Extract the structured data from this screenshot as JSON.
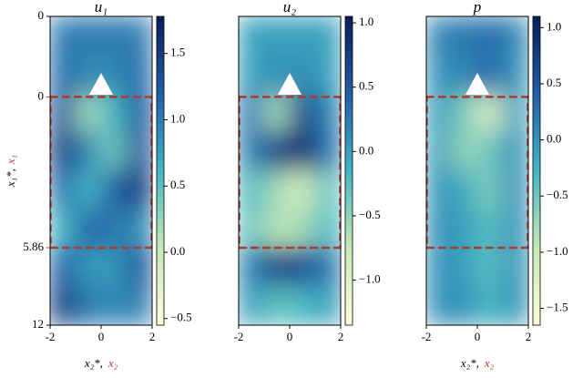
{
  "chart_data": [
    {
      "type": "heatmap",
      "title": "u₁",
      "xlabel": "x₂*,",
      "x2label": "x₂",
      "ylabel": "x₁*,",
      "y2label": "x₁",
      "accent": "#b03a2e",
      "xlim": [
        -2,
        2
      ],
      "xticks": [
        -2,
        0,
        2
      ],
      "ylim": [
        0,
        12
      ],
      "yticks": [
        0,
        12
      ],
      "y2lim": [
        -3.13,
        8.87
      ],
      "y2ticks": [
        0,
        5.86
      ],
      "clim": [
        -0.55,
        1.78
      ],
      "cticks": [
        {
          "value": -0.5,
          "label": "−0.5"
        },
        {
          "value": 0,
          "label": "0.0"
        },
        0.5,
        {
          "value": 1,
          "label": "1.0"
        },
        1.5
      ],
      "colormap": [
        "#ffffd9",
        "#c7e9b4",
        "#41b6c4",
        "#225ea8",
        "#081d58"
      ],
      "values": [
        [
          1.0,
          1.0,
          1.0,
          1.0
        ],
        [
          1.1,
          0.9,
          0.9,
          1.1
        ],
        [
          1.3,
          0.2,
          0.6,
          1.3
        ],
        [
          1.5,
          0.9,
          0.4,
          1.3
        ],
        [
          1.1,
          0.6,
          1.2,
          1.5
        ],
        [
          0.6,
          1.2,
          1.0,
          0.9
        ],
        [
          1.2,
          0.8,
          0.8,
          1.3
        ],
        [
          1.5,
          1.0,
          0.9,
          1.0
        ]
      ]
    },
    {
      "type": "heatmap",
      "title": "u₂",
      "accent": "#b03a2e",
      "xlim": [
        -2,
        2
      ],
      "xticks": [
        -2,
        0,
        2
      ],
      "ylim": [
        0,
        12
      ],
      "y2lim": [
        -3.13,
        8.87
      ],
      "y2ticks": [
        0,
        5.86
      ],
      "clim": [
        -1.35,
        1.05
      ],
      "cticks": [
        {
          "value": -1,
          "label": "−1.0"
        },
        {
          "value": -0.5,
          "label": "−0.5"
        },
        {
          "value": 0,
          "label": "0.0"
        },
        0.5,
        {
          "value": 1,
          "label": "1.0"
        }
      ],
      "colormap": [
        "#ffffd9",
        "#c7e9b4",
        "#41b6c4",
        "#225ea8",
        "#081d58"
      ],
      "values": [
        [
          0,
          0,
          0,
          0
        ],
        [
          0,
          0.1,
          0.1,
          0
        ],
        [
          0.3,
          -0.6,
          0.7,
          0.2
        ],
        [
          0.2,
          0.7,
          0.9,
          0.3
        ],
        [
          -0.2,
          -0.6,
          -0.9,
          -0.3
        ],
        [
          -0.3,
          -0.7,
          -0.6,
          -0.2
        ],
        [
          0.2,
          0.7,
          0.6,
          0.3
        ],
        [
          0,
          -0.3,
          -0.2,
          0
        ]
      ]
    },
    {
      "type": "heatmap",
      "title": "p",
      "xlabel": "x₂*,",
      "x2label": "x₂",
      "accent": "#b03a2e",
      "xlim": [
        -2,
        2
      ],
      "xticks": [
        -2,
        0,
        2
      ],
      "ylim": [
        0,
        12
      ],
      "y2lim": [
        -3.13,
        8.87
      ],
      "y2ticks": [
        0,
        5.86
      ],
      "clim": [
        -1.65,
        1.1
      ],
      "cticks": [
        {
          "value": -1.5,
          "label": "−1.5"
        },
        {
          "value": -1,
          "label": "−1.0"
        },
        {
          "value": -0.5,
          "label": "−0.5"
        },
        {
          "value": 0,
          "label": "0.0"
        },
        0.5,
        {
          "value": 1,
          "label": "1.0"
        }
      ],
      "colormap": [
        "#ffffd9",
        "#c7e9b4",
        "#41b6c4",
        "#225ea8",
        "#081d58"
      ],
      "values": [
        [
          0.1,
          0.2,
          0.3,
          0.1
        ],
        [
          0,
          0.1,
          0.3,
          0
        ],
        [
          -0.1,
          -0.6,
          -1.2,
          -0.1
        ],
        [
          -0.1,
          -0.7,
          -0.5,
          0
        ],
        [
          0,
          -0.2,
          -0.6,
          0
        ],
        [
          0,
          -0.1,
          -0.4,
          0
        ],
        [
          0,
          -0.1,
          -0.4,
          0
        ],
        [
          0,
          0,
          -0.3,
          0
        ]
      ]
    }
  ]
}
